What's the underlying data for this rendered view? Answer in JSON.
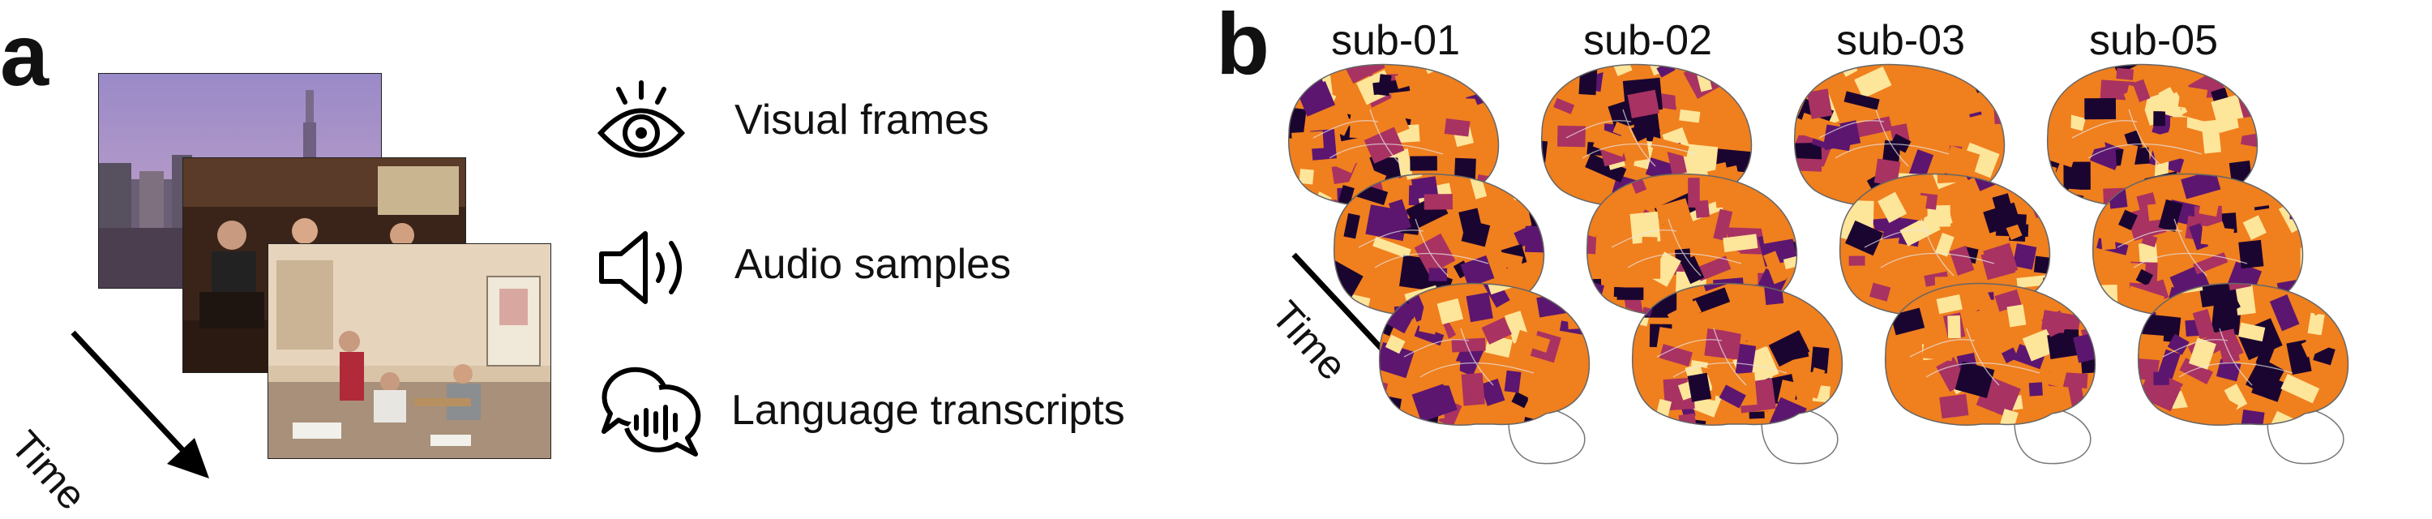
{
  "panel_a": {
    "letter": "a",
    "time_label": "Time",
    "modalities": [
      {
        "label": "Visual frames",
        "icon": "eye-icon"
      },
      {
        "label": "Audio samples",
        "icon": "speaker-icon"
      },
      {
        "label": "Language transcripts",
        "icon": "speech-bubbles-icon"
      }
    ]
  },
  "panel_b": {
    "letter": "b",
    "time_label": "Time",
    "subjects": [
      "sub-01",
      "sub-02",
      "sub-03",
      "sub-05"
    ]
  },
  "colors": {
    "brain_dark": "#1a0530",
    "brain_purple": "#5c1670",
    "brain_mid": "#a83262",
    "brain_orange": "#f07f1e",
    "brain_yellow": "#fde59a",
    "text": "#111111"
  }
}
